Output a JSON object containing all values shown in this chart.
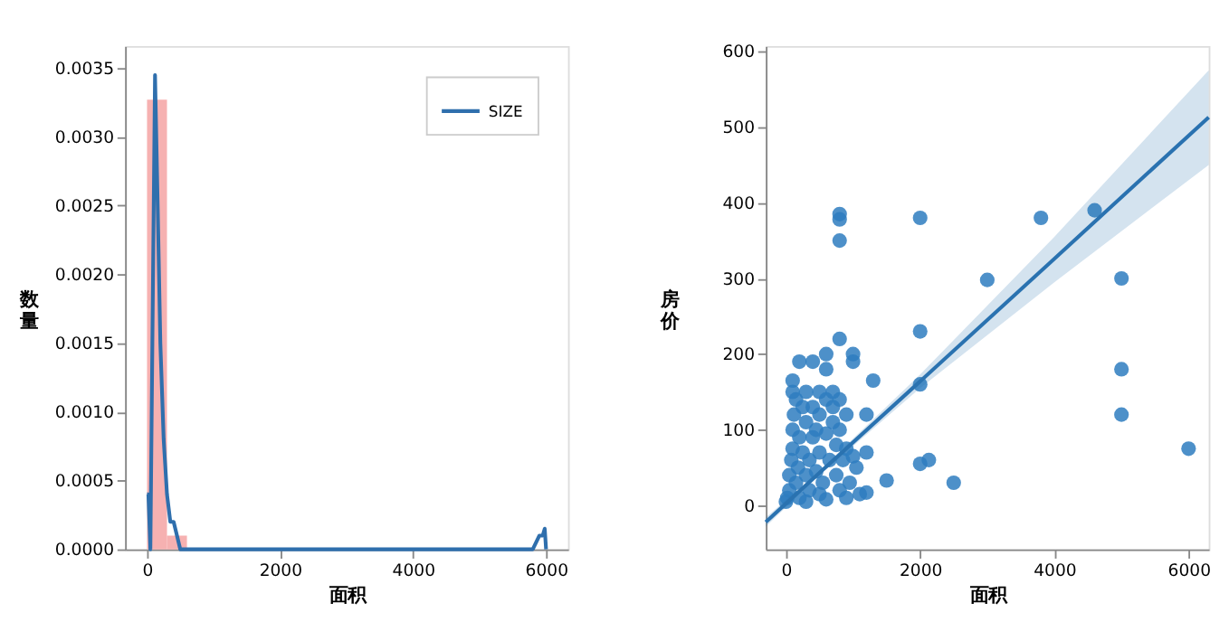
{
  "chart_data": [
    {
      "type": "histogram",
      "xlabel": "面积",
      "ylabel": "数量",
      "color": "#f4a3a3",
      "bins": [
        0,
        300,
        600,
        900,
        1200,
        1500,
        1800,
        2100,
        2400,
        2700,
        3000,
        3300,
        3600,
        3900,
        4200,
        4500,
        4800,
        5100,
        5400,
        5700,
        6000
      ],
      "values": [
        0.00327,
        0.0001,
        0,
        0,
        0,
        0,
        0,
        0,
        0,
        0,
        0,
        0,
        0,
        0,
        0,
        0,
        0,
        0,
        0,
        0
      ],
      "series": [
        {
          "name": "SIZE",
          "type": "line",
          "marker": "none",
          "color": "#2f6fad",
          "x": [
            0,
            20,
            50,
            80,
            120,
            160,
            200,
            250,
            300,
            350,
            400,
            450,
            500,
            600,
            800,
            1000,
            1500,
            2000,
            3000,
            4000,
            5000,
            5500,
            5700,
            5800,
            5900,
            5950,
            5980,
            6000
          ],
          "values": [
            0.0004,
            0.0004,
            0,
            0.0015,
            0.00345,
            0.0025,
            0.0015,
            0.0008,
            0.0004,
            0.0002,
            0.0002,
            0.0001,
            0,
            0,
            0,
            0,
            0,
            0,
            0,
            0,
            0,
            0,
            0,
            0,
            0.0001,
            0.0001,
            0.00015,
            0
          ]
        }
      ],
      "xlim": [
        -330,
        6330
      ],
      "xticks": [
        0,
        2000,
        4000,
        6000
      ],
      "ylim": [
        0,
        0.00366
      ],
      "yticks": [
        {
          "value": 0,
          "label": "0.0000"
        },
        {
          "value": 0.0005,
          "label": "0.0005"
        },
        {
          "value": 0.001,
          "label": "0.0010"
        },
        {
          "value": 0.0015,
          "label": "0.0015"
        },
        {
          "value": 0.002,
          "label": "0.0020"
        },
        {
          "value": 0.0025,
          "label": "0.0025"
        },
        {
          "value": 0.003,
          "label": "0.0030"
        },
        {
          "value": 0.0035,
          "label": "0.0035"
        }
      ],
      "legend": "top right",
      "grid": false
    },
    {
      "type": "scatter",
      "xlabel": "面积",
      "ylabel": "房价",
      "color": "#2e7dbf",
      "marker": "circle",
      "x": [
        0,
        20,
        50,
        50,
        80,
        100,
        100,
        100,
        100,
        120,
        150,
        150,
        180,
        200,
        200,
        200,
        250,
        250,
        300,
        300,
        300,
        350,
        350,
        400,
        400,
        400,
        450,
        450,
        500,
        500,
        500,
        500,
        550,
        600,
        600,
        600,
        600,
        650,
        700,
        700,
        700,
        750,
        750,
        800,
        800,
        800,
        800,
        800,
        800,
        800,
        850,
        900,
        900,
        950,
        1000,
        1000,
        1000,
        1050,
        1100,
        1200,
        1200,
        1200,
        1300,
        1500,
        2000,
        2000,
        2000,
        2000,
        2130,
        2500,
        3000,
        3800,
        4600,
        5000,
        5000,
        5000,
        6000,
        300,
        600,
        900
      ],
      "values": [
        5,
        10,
        20,
        40,
        60,
        100,
        75,
        150,
        165,
        120,
        140,
        30,
        50,
        190,
        90,
        10,
        130,
        70,
        110,
        150,
        40,
        60,
        20,
        190,
        130,
        90,
        100,
        45,
        150,
        120,
        70,
        15,
        30,
        200,
        180,
        140,
        95,
        60,
        130,
        150,
        110,
        80,
        40,
        385,
        378,
        350,
        220,
        140,
        100,
        20,
        60,
        120,
        75,
        30,
        200,
        190,
        65,
        50,
        15,
        120,
        70,
        17,
        165,
        33,
        380,
        230,
        160,
        55,
        60,
        30,
        298,
        380,
        390,
        300,
        180,
        120,
        75,
        5,
        8,
        10
      ],
      "series": [
        {
          "type": "line",
          "marker": "none",
          "color": "#2a72b0",
          "x": [
            -300,
            500,
            2000,
            4000,
            6300
          ],
          "values": [
            -22,
            43,
            164,
            326,
            513
          ],
          "lower": [
            -28,
            40,
            155,
            295,
            450
          ],
          "upper": [
            -16,
            46,
            173,
            355,
            575
          ]
        }
      ],
      "xlim": [
        -300,
        6300
      ],
      "xticks": [
        0,
        2000,
        4000,
        6000
      ],
      "ylim": [
        -58,
        607
      ],
      "yticks": [
        0,
        100,
        200,
        300,
        400,
        500,
        600
      ],
      "grid": false
    }
  ]
}
